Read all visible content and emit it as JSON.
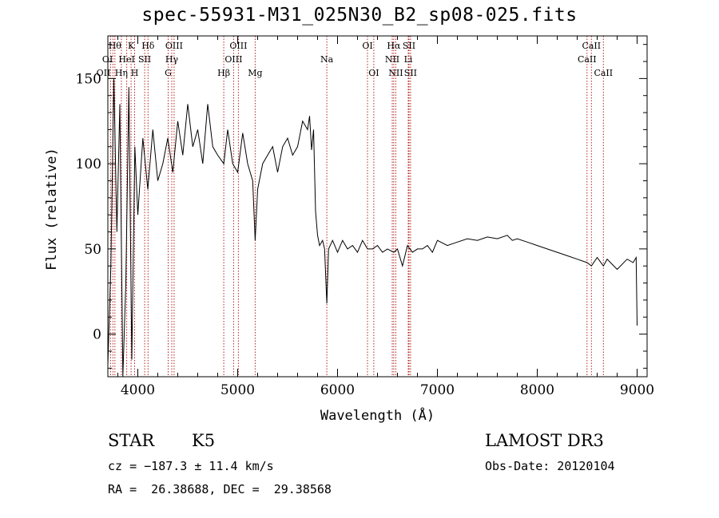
{
  "chart_data": {
    "type": "line",
    "title": "spec-55931-M31_025N30_B2_sp08-025.fits",
    "xlabel": "Wavelength (Å)",
    "ylabel": "Flux (relative)",
    "xlim": [
      3700,
      9100
    ],
    "ylim": [
      -25,
      175
    ],
    "xticks": [
      4000,
      5000,
      6000,
      7000,
      8000,
      9000
    ],
    "yticks": [
      0,
      50,
      100,
      150
    ],
    "series": [
      {
        "name": "spectrum",
        "x": [
          3700,
          3730,
          3760,
          3790,
          3820,
          3850,
          3880,
          3910,
          3940,
          3970,
          4000,
          4050,
          4100,
          4150,
          4200,
          4250,
          4300,
          4350,
          4400,
          4450,
          4500,
          4550,
          4600,
          4650,
          4700,
          4750,
          4800,
          4861,
          4900,
          4950,
          5000,
          5050,
          5100,
          5150,
          5175,
          5200,
          5250,
          5300,
          5350,
          5400,
          5450,
          5500,
          5550,
          5600,
          5650,
          5700,
          5720,
          5740,
          5760,
          5780,
          5800,
          5820,
          5850,
          5870,
          5893,
          5910,
          5950,
          6000,
          6050,
          6100,
          6150,
          6200,
          6250,
          6300,
          6350,
          6400,
          6450,
          6500,
          6563,
          6600,
          6650,
          6700,
          6750,
          6800,
          6850,
          6900,
          6950,
          7000,
          7100,
          7200,
          7300,
          7400,
          7500,
          7600,
          7700,
          7750,
          7800,
          7900,
          8000,
          8100,
          8200,
          8300,
          8400,
          8498,
          8542,
          8600,
          8662,
          8700,
          8800,
          8900,
          8960,
          8990,
          9000
        ],
        "y": [
          -18,
          40,
          150,
          60,
          135,
          -25,
          30,
          145,
          -15,
          110,
          70,
          115,
          85,
          120,
          90,
          100,
          115,
          95,
          125,
          105,
          135,
          110,
          120,
          100,
          135,
          110,
          105,
          100,
          120,
          100,
          95,
          118,
          100,
          90,
          55,
          85,
          100,
          105,
          110,
          95,
          110,
          115,
          105,
          110,
          125,
          120,
          128,
          108,
          120,
          72,
          58,
          52,
          55,
          50,
          18,
          50,
          55,
          48,
          55,
          50,
          52,
          48,
          55,
          50,
          50,
          52,
          48,
          50,
          48,
          50,
          40,
          52,
          48,
          50,
          50,
          52,
          48,
          55,
          52,
          54,
          56,
          55,
          57,
          56,
          58,
          55,
          56,
          54,
          52,
          50,
          48,
          46,
          44,
          42,
          40,
          45,
          40,
          44,
          38,
          44,
          42,
          45,
          5
        ]
      }
    ],
    "lines": [
      {
        "wl": 3727,
        "label": "OII",
        "row": 3,
        "ha": "right"
      },
      {
        "wl": 3750,
        "label": "OI",
        "row": 2,
        "ha": "right"
      },
      {
        "wl": 3770,
        "label": "Hθ",
        "row": 1,
        "ha": "center"
      },
      {
        "wl": 3835,
        "label": "Hη",
        "row": 3,
        "ha": "center"
      },
      {
        "wl": 3889,
        "label": "HeI",
        "row": 2,
        "ha": "center"
      },
      {
        "wl": 3933,
        "label": "K",
        "row": 1,
        "ha": "center"
      },
      {
        "wl": 3968,
        "label": "H",
        "row": 3,
        "ha": "center"
      },
      {
        "wl": 4069,
        "label": "SII",
        "row": 2,
        "ha": "center"
      },
      {
        "wl": 4102,
        "label": "Hδ",
        "row": 1,
        "ha": "center"
      },
      {
        "wl": 4304,
        "label": "G",
        "row": 3,
        "ha": "center"
      },
      {
        "wl": 4340,
        "label": "Hγ",
        "row": 2,
        "ha": "center"
      },
      {
        "wl": 4363,
        "label": "OIII",
        "row": 1,
        "ha": "center"
      },
      {
        "wl": 4861,
        "label": "Hβ",
        "row": 3,
        "ha": "center"
      },
      {
        "wl": 4959,
        "label": "OIII",
        "row": 2,
        "ha": "center"
      },
      {
        "wl": 5007,
        "label": "OIII",
        "row": 1,
        "ha": "center"
      },
      {
        "wl": 5175,
        "label": "Mg",
        "row": 3,
        "ha": "center"
      },
      {
        "wl": 5893,
        "label": "Na",
        "row": 2,
        "ha": "center"
      },
      {
        "wl": 6300,
        "label": "OI",
        "row": 1,
        "ha": "center"
      },
      {
        "wl": 6363,
        "label": "OI",
        "row": 3,
        "ha": "center"
      },
      {
        "wl": 6548,
        "label": "NII",
        "row": 2,
        "ha": "center"
      },
      {
        "wl": 6563,
        "label": "Hα",
        "row": 1,
        "ha": "center"
      },
      {
        "wl": 6583,
        "label": "NII",
        "row": 3,
        "ha": "center"
      },
      {
        "wl": 6708,
        "label": "Li",
        "row": 2,
        "ha": "center"
      },
      {
        "wl": 6716,
        "label": "SII",
        "row": 1,
        "ha": "center"
      },
      {
        "wl": 6731,
        "label": "SII",
        "row": 3,
        "ha": "center"
      },
      {
        "wl": 8498,
        "label": "CaII",
        "row": 2,
        "ha": "center"
      },
      {
        "wl": 8542,
        "label": "CaII",
        "row": 1,
        "ha": "center"
      },
      {
        "wl": 8662,
        "label": "CaII",
        "row": 3,
        "ha": "center"
      }
    ]
  },
  "info": {
    "class_label": "STAR",
    "subclass": "K5",
    "survey": "LAMOST DR3",
    "cz": "cz = −187.3 ± 11.4 km/s",
    "obs_date": "Obs-Date: 20120104",
    "coords": "RA =  26.38688, DEC =  29.38568"
  },
  "colors": {
    "line_marker": "#b22222",
    "spectrum": "#000000",
    "axes": "#000000"
  }
}
